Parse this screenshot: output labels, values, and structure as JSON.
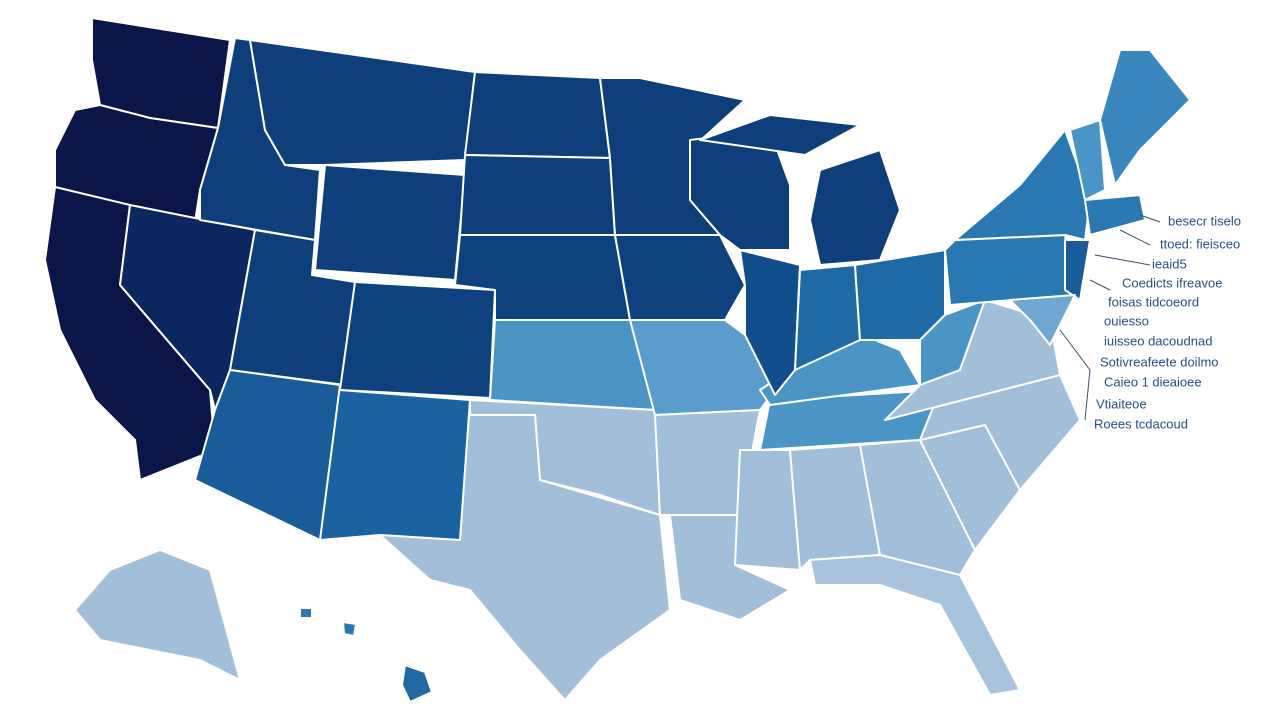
{
  "labels": [
    "besecr tiselo",
    "ttoed: fieisceo",
    "ieaid5",
    "Coedicts ifreavoe",
    "foisas tidcoeord",
    "ouiesso",
    "iuisseo dacoudnad",
    "Sotivreafeete doilmo",
    "Caieo 1 dieaioee",
    "Vtiaiteoe",
    "Roees tcdacoud"
  ]
}
